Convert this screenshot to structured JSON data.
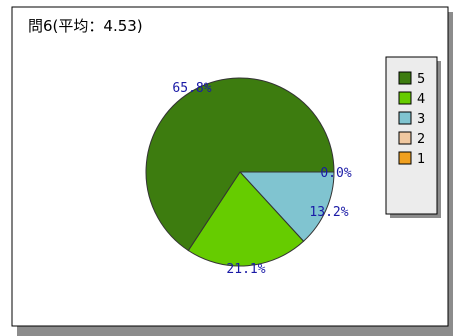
{
  "chart_data": {
    "type": "pie",
    "title": "問6(平均：4.53)",
    "slices": [
      {
        "label": "5",
        "value": 65.8,
        "label_text": "65.8%",
        "color": "#3d7c0f"
      },
      {
        "label": "4",
        "value": 21.1,
        "label_text": "21.1%",
        "color": "#66cc00"
      },
      {
        "label": "3",
        "value": 13.2,
        "label_text": "13.2%",
        "color": "#80c4d0"
      },
      {
        "label": "2",
        "value": 0.0,
        "label_text": "0.0%",
        "color": "#f0c8a0"
      },
      {
        "label": "1",
        "value": 0.0,
        "label_text": "",
        "color": "#f0a020"
      }
    ],
    "legend": {
      "placement": "right",
      "items": [
        {
          "label": "5",
          "color": "#3d7c0f"
        },
        {
          "label": "4",
          "color": "#66cc00"
        },
        {
          "label": "3",
          "color": "#80c4d0"
        },
        {
          "label": "2",
          "color": "#f0c8a0"
        },
        {
          "label": "1",
          "color": "#f0a020"
        }
      ]
    },
    "label_color": "#1a1aa6"
  }
}
